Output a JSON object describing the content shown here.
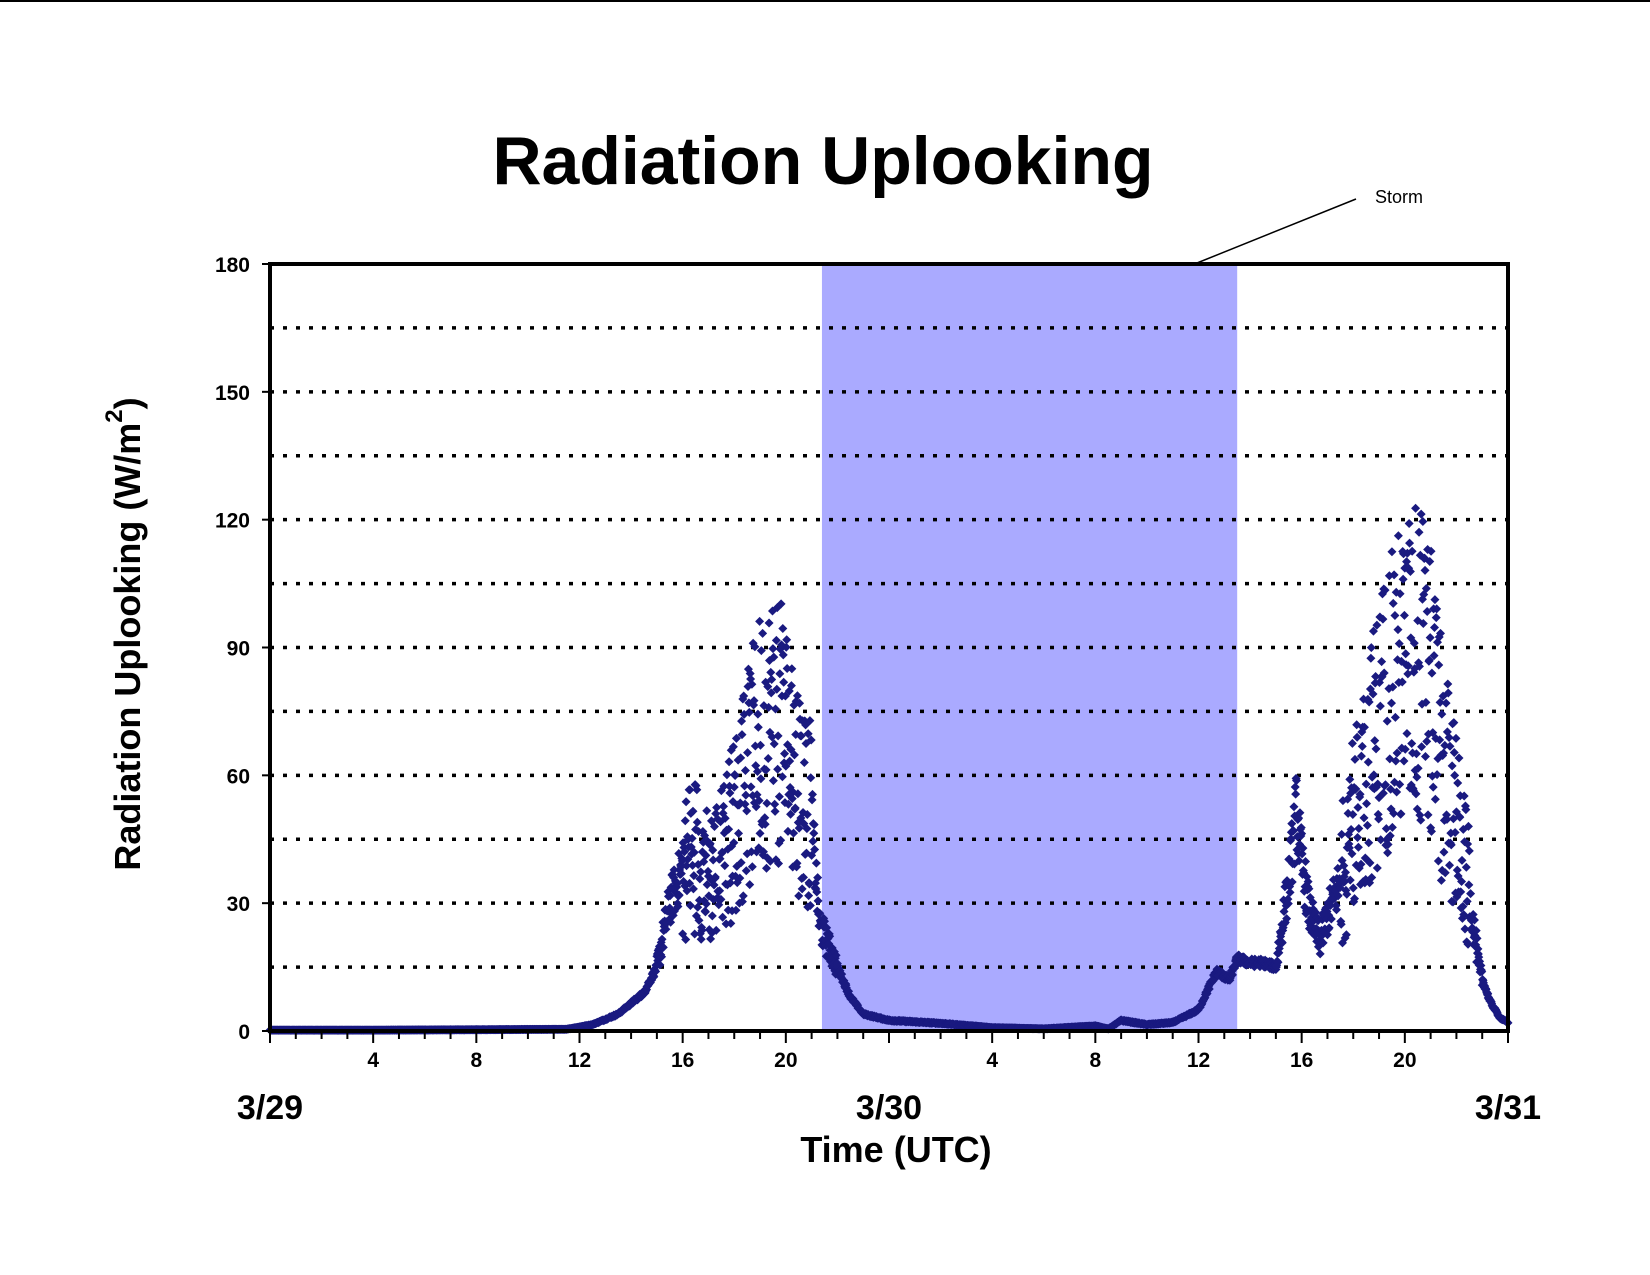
{
  "chart_data": {
    "type": "scatter",
    "title": "Radiation Uplooking",
    "xlabel": "Time (UTC)",
    "ylabel": {
      "prefix": "Radiation Uplooking (W/m",
      "superscript": "2",
      "suffix": ")"
    },
    "xlim_hours": [
      0,
      48
    ],
    "ylim": [
      0,
      180
    ],
    "y_ticks": [
      0,
      30,
      60,
      90,
      120,
      150,
      180
    ],
    "y_ticks_labeled": [
      "0",
      "30",
      "60",
      "90",
      "120",
      "150",
      "180"
    ],
    "gridlines_y": [
      15,
      30,
      45,
      60,
      75,
      90,
      105,
      120,
      135,
      150,
      165
    ],
    "grid": "horizontal dotted",
    "x_tick_labels": [
      {
        "hour": 4,
        "label": "4"
      },
      {
        "hour": 8,
        "label": "8"
      },
      {
        "hour": 12,
        "label": "12"
      },
      {
        "hour": 16,
        "label": "16"
      },
      {
        "hour": 20,
        "label": "20"
      },
      {
        "hour": 28,
        "label": "4"
      },
      {
        "hour": 32,
        "label": "8"
      },
      {
        "hour": 36,
        "label": "12"
      },
      {
        "hour": 40,
        "label": "16"
      },
      {
        "hour": 44,
        "label": "20"
      }
    ],
    "day_labels": [
      {
        "hour": 0,
        "label": "3/29"
      },
      {
        "hour": 24,
        "label": "3/30"
      },
      {
        "hour": 48,
        "label": "3/31"
      }
    ],
    "shaded_region": {
      "label": "Storm",
      "x_start": 21.4,
      "x_end": 37.5,
      "color": "#aaaaff"
    },
    "marker_color": "#1a1a80",
    "marker": "diamond",
    "legend": "none",
    "series_profile": [
      [
        0,
        0.2
      ],
      [
        4,
        0.2
      ],
      [
        8,
        0.3
      ],
      [
        11.5,
        0.4
      ],
      [
        12.5,
        1.5
      ],
      [
        13.5,
        4
      ],
      [
        14.5,
        9
      ],
      [
        15,
        15
      ],
      [
        15.5,
        30
      ],
      [
        16,
        38
      ],
      [
        16.5,
        42
      ],
      [
        17,
        36
      ],
      [
        17.5,
        40
      ],
      [
        18,
        48
      ],
      [
        18.5,
        58
      ],
      [
        19,
        68
      ],
      [
        19.5,
        72
      ],
      [
        20,
        68
      ],
      [
        20.5,
        58
      ],
      [
        21,
        50
      ],
      [
        21.3,
        25
      ],
      [
        22,
        15
      ],
      [
        22.5,
        8
      ],
      [
        23,
        4
      ],
      [
        24,
        2.5
      ],
      [
        26,
        1.8
      ],
      [
        28,
        0.8
      ],
      [
        30,
        0.5
      ],
      [
        32,
        1.2
      ],
      [
        32.5,
        0.5
      ],
      [
        33,
        2.5
      ],
      [
        34,
        1.5
      ],
      [
        35,
        2
      ],
      [
        36,
        5
      ],
      [
        36.7,
        14
      ],
      [
        37.2,
        12
      ],
      [
        37.5,
        17
      ],
      [
        38,
        16
      ],
      [
        38.5,
        16
      ],
      [
        39,
        15
      ],
      [
        39.5,
        35
      ],
      [
        39.8,
        52
      ],
      [
        40,
        40
      ],
      [
        40.3,
        28
      ],
      [
        40.7,
        21
      ],
      [
        41,
        27
      ],
      [
        41.5,
        35
      ],
      [
        42,
        48
      ],
      [
        42.5,
        60
      ],
      [
        43,
        70
      ],
      [
        43.5,
        80
      ],
      [
        44,
        82
      ],
      [
        44.5,
        88
      ],
      [
        45,
        78
      ],
      [
        45.5,
        62
      ],
      [
        46,
        48
      ],
      [
        46.5,
        32
      ],
      [
        46.9,
        14
      ],
      [
        47.3,
        7
      ],
      [
        47.7,
        3
      ],
      [
        48,
        2
      ]
    ]
  }
}
